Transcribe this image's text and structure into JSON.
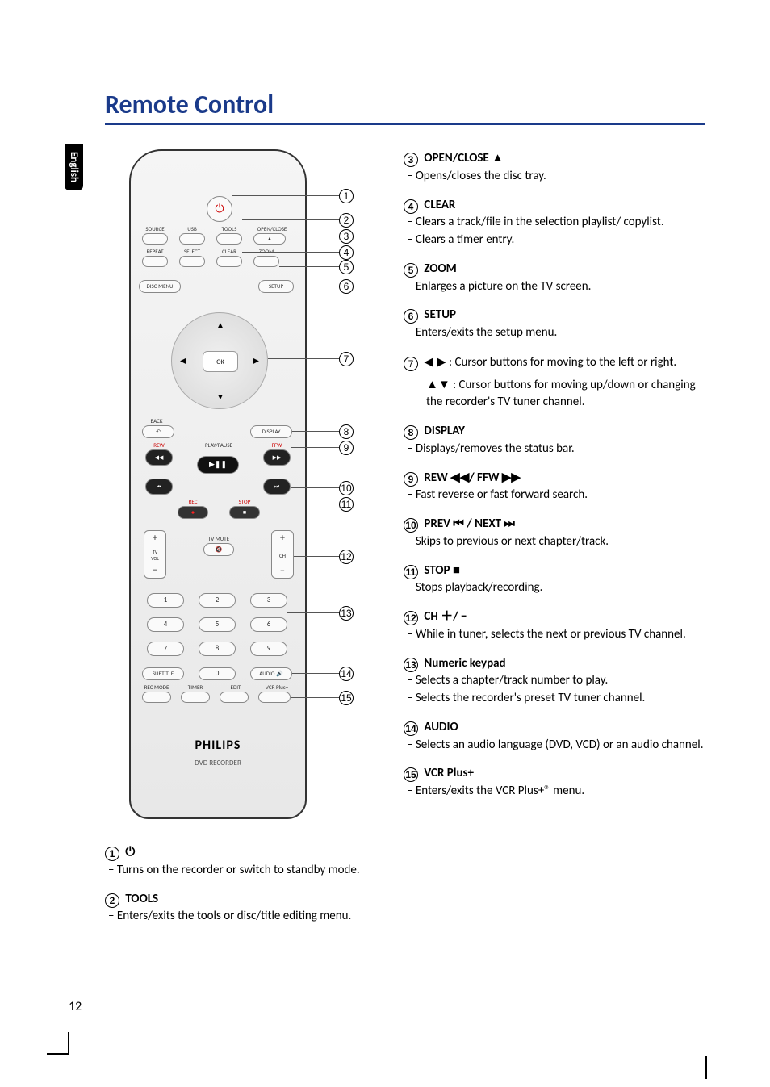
{
  "page": {
    "title": "Remote Control",
    "language_tab": "English",
    "page_number": "12"
  },
  "remote": {
    "brand": "PHILIPS",
    "sub_brand": "DVD RECORDER",
    "ok_label": "OK",
    "labels": {
      "source": "SOURCE",
      "usb": "USB",
      "tools": "TOOLS",
      "open_close": "OPEN/CLOSE",
      "repeat": "REPEAT",
      "select": "SELECT",
      "clear": "CLEAR",
      "zoom": "ZOOM",
      "disc_menu": "DISC MENU",
      "setup": "SETUP",
      "back": "BACK",
      "display": "DISPLAY",
      "rew": "REW",
      "play_pause": "PLAY/PAUSE",
      "ffw": "FFW",
      "rec": "REC",
      "stop": "STOP",
      "tv_vol": "TV\nVOL",
      "tv_mute": "TV MUTE",
      "ch": "CH",
      "subtitle": "SUBTITLE",
      "audio": "AUDIO",
      "rec_mode": "REC MODE",
      "timer": "TIMER",
      "edit": "EDIT",
      "vcr_plus": "VCR Plus+"
    }
  },
  "callouts": [
    "1",
    "2",
    "3",
    "4",
    "5",
    "6",
    "7",
    "8",
    "9",
    "10",
    "11",
    "12",
    "13",
    "14",
    "15"
  ],
  "items_left": [
    {
      "num": "1",
      "head_symbol": "⏻",
      "head": "",
      "descs": [
        "Turns on the recorder or switch to standby mode."
      ]
    },
    {
      "num": "2",
      "head": "TOOLS",
      "descs": [
        "Enters/exits the tools or disc/title editing menu."
      ]
    }
  ],
  "items_right": [
    {
      "num": "3",
      "head": "OPEN/CLOSE",
      "head_symbol": "▲",
      "descs": [
        "Opens/closes the disc tray."
      ]
    },
    {
      "num": "4",
      "head": "CLEAR",
      "descs": [
        "Clears a track/file in the selection playlist/ copylist.",
        "Clears a timer entry."
      ]
    },
    {
      "num": "5",
      "head": "ZOOM",
      "descs": [
        "Enlarges a picture on the TV screen."
      ]
    },
    {
      "num": "6",
      "head": "SETUP",
      "descs": [
        "Enters/exits the setup menu."
      ]
    },
    {
      "num": "7",
      "head_symbol": "◀ ▶",
      "head_after": " : Cursor buttons for moving to the left or right.",
      "extra": "▲▼ : Cursor buttons for moving up/down or changing the recorder's TV tuner channel."
    },
    {
      "num": "8",
      "head": "DISPLAY",
      "descs": [
        "Displays/removes the status bar."
      ]
    },
    {
      "num": "9",
      "head": " REW ◀◀/ FFW ▶▶",
      "descs": [
        "Fast reverse or fast forward search."
      ]
    },
    {
      "num": "10",
      "head": "PREV ⏮ / NEXT ⏭",
      "descs": [
        "Skips to previous or next chapter/track."
      ]
    },
    {
      "num": "11",
      "head": "STOP ■",
      "descs": [
        "Stops playback/recording."
      ]
    },
    {
      "num": "12",
      "head": "CH ＋/ −",
      "descs": [
        "While in tuner, selects the next or previous TV channel."
      ]
    },
    {
      "num": "13",
      "head": "Numeric keypad",
      "descs": [
        "Selects a chapter/track number to play.",
        "Selects the recorder's preset TV tuner channel."
      ]
    },
    {
      "num": "14",
      "head": "AUDIO",
      "descs": [
        "Selects an audio language (DVD, VCD) or an audio channel."
      ]
    },
    {
      "num": "15",
      "head": "VCR Plus+",
      "descs": [
        "Enters/exits the VCR Plus+® menu."
      ]
    }
  ]
}
